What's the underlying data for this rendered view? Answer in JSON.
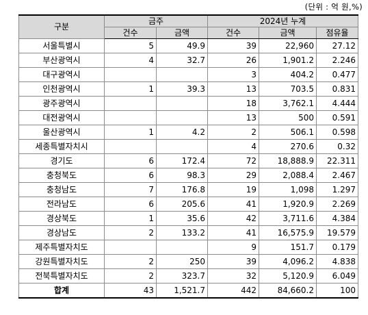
{
  "unit_note": "(단위 : 억 원,%)",
  "header": {
    "region": "구분",
    "group_monthly": "금주",
    "group_cumulative": "2024년 누계",
    "count": "건수",
    "amount": "금액",
    "count2": "건수",
    "amount2": "금액",
    "share": "점유율"
  },
  "rows": [
    {
      "region": "서울특별시",
      "w_count": "5",
      "w_amount": "49.9",
      "c_count": "39",
      "c_amount": "22,960",
      "share": "27.12"
    },
    {
      "region": "부산광역시",
      "w_count": "4",
      "w_amount": "32.7",
      "c_count": "26",
      "c_amount": "1,901.2",
      "share": "2.246"
    },
    {
      "region": "대구광역시",
      "w_count": "",
      "w_amount": "",
      "c_count": "3",
      "c_amount": "404.2",
      "share": "0.477"
    },
    {
      "region": "인천광역시",
      "w_count": "1",
      "w_amount": "39.3",
      "c_count": "13",
      "c_amount": "703.5",
      "share": "0.831"
    },
    {
      "region": "광주광역시",
      "w_count": "",
      "w_amount": "",
      "c_count": "18",
      "c_amount": "3,762.1",
      "share": "4.444"
    },
    {
      "region": "대전광역시",
      "w_count": "",
      "w_amount": "",
      "c_count": "13",
      "c_amount": "500",
      "share": "0.591"
    },
    {
      "region": "울산광역시",
      "w_count": "1",
      "w_amount": "4.2",
      "c_count": "2",
      "c_amount": "506.1",
      "share": "0.598"
    },
    {
      "region": "세종특별자치시",
      "w_count": "",
      "w_amount": "",
      "c_count": "4",
      "c_amount": "270.6",
      "share": "0.32"
    },
    {
      "region": "경기도",
      "w_count": "6",
      "w_amount": "172.4",
      "c_count": "72",
      "c_amount": "18,888.9",
      "share": "22.311"
    },
    {
      "region": "충청북도",
      "w_count": "6",
      "w_amount": "98.3",
      "c_count": "29",
      "c_amount": "2,088.4",
      "share": "2.467"
    },
    {
      "region": "충청남도",
      "w_count": "7",
      "w_amount": "176.8",
      "c_count": "19",
      "c_amount": "1,098",
      "share": "1.297"
    },
    {
      "region": "전라남도",
      "w_count": "6",
      "w_amount": "205.6",
      "c_count": "41",
      "c_amount": "1,920.9",
      "share": "2.269"
    },
    {
      "region": "경상북도",
      "w_count": "1",
      "w_amount": "35.6",
      "c_count": "42",
      "c_amount": "3,711.6",
      "share": "4.384"
    },
    {
      "region": "경상남도",
      "w_count": "2",
      "w_amount": "133.2",
      "c_count": "41",
      "c_amount": "16,575.9",
      "share": "19.579"
    },
    {
      "region": "제주특별자치도",
      "w_count": "",
      "w_amount": "",
      "c_count": "9",
      "c_amount": "151.7",
      "share": "0.179"
    },
    {
      "region": "강원특별자치도",
      "w_count": "2",
      "w_amount": "250",
      "c_count": "39",
      "c_amount": "4,096.2",
      "share": "4.838"
    },
    {
      "region": "전북특별자치도",
      "w_count": "2",
      "w_amount": "323.7",
      "c_count": "32",
      "c_amount": "5,120.9",
      "share": "6.049"
    }
  ],
  "total": {
    "region": "합계",
    "w_count": "43",
    "w_amount": "1,521.7",
    "c_count": "442",
    "c_amount": "84,660.2",
    "share": "100"
  }
}
